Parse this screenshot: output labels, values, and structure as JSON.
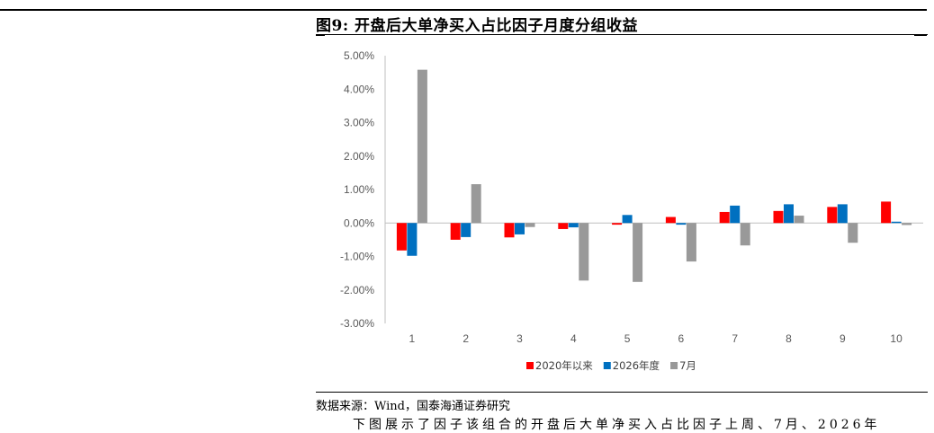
{
  "figure": {
    "title": "图9:  开盘后大单净买入占比因子月度分组收益",
    "source": "数据来源：Wind，国泰海通证券研究",
    "following_text": "下图展示了因子该组合的开盘后大单净买入占比因子上周、7月、2026年"
  },
  "chart_data": {
    "type": "bar",
    "title": "",
    "xlabel": "",
    "ylabel": "",
    "categories": [
      "1",
      "2",
      "3",
      "4",
      "5",
      "6",
      "7",
      "8",
      "9",
      "10"
    ],
    "ylim": [
      -3.0,
      5.0
    ],
    "yticks": [
      "5.00%",
      "4.00%",
      "3.00%",
      "2.00%",
      "1.00%",
      "0.00%",
      "-1.00%",
      "-2.00%",
      "-3.00%"
    ],
    "grid": false,
    "legend_position": "bottom",
    "series": [
      {
        "name": "2020年以来",
        "color": "#ff0000",
        "values": [
          -0.82,
          -0.5,
          -0.43,
          -0.18,
          -0.05,
          0.18,
          0.33,
          0.36,
          0.48,
          0.64
        ]
      },
      {
        "name": "2026年度",
        "color": "#0070c0",
        "values": [
          -0.98,
          -0.42,
          -0.34,
          -0.13,
          0.24,
          -0.05,
          0.52,
          0.56,
          0.56,
          0.04
        ]
      },
      {
        "name": "7月",
        "color": "#999999",
        "values": [
          4.58,
          1.16,
          -0.12,
          -1.72,
          -1.76,
          -1.15,
          -0.67,
          0.22,
          -0.59,
          -0.06
        ]
      }
    ]
  }
}
